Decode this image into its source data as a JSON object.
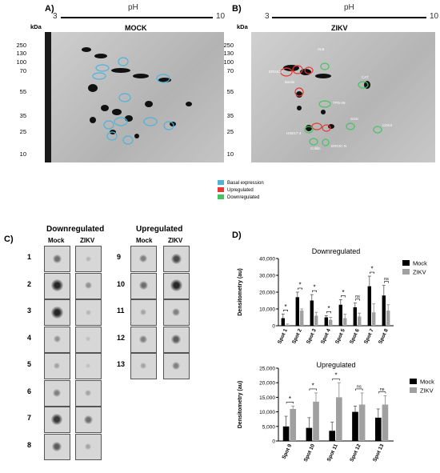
{
  "panelA": {
    "letter": "A)",
    "ph_label": "pH",
    "ph_low": "3",
    "ph_high": "10",
    "kda_label": "kDa",
    "title": "MOCK",
    "mw_ticks": [
      "250",
      "130",
      "100",
      "70",
      "55",
      "35",
      "25",
      "10"
    ]
  },
  "panelB": {
    "letter": "B)",
    "ph_label": "pH",
    "ph_low": "3",
    "ph_high": "10",
    "kda_label": "kDa",
    "title": "ZIKV",
    "mw_ticks": [
      "250",
      "130",
      "100",
      "70",
      "55",
      "35",
      "25",
      "10"
    ],
    "labels": [
      "ALB",
      "ERGIC3",
      "Basile",
      "CAT",
      "TPD-28",
      "SOD",
      "CDK3",
      "HSB17-4",
      "ERGIC-N",
      "Cofilin"
    ]
  },
  "legend": [
    {
      "label": "Basal expression",
      "color": "#4fb3d9"
    },
    {
      "label": "Upregulated",
      "color": "#e53935"
    },
    {
      "label": "Downregulated",
      "color": "#43c463"
    }
  ],
  "panelC": {
    "letter": "C)",
    "down_header": "Downregulated",
    "up_header": "Upregulated",
    "col_mock": "Mock",
    "col_zikv": "ZIKV",
    "down_rows": [
      "1",
      "2",
      "3",
      "4",
      "5",
      "6",
      "7",
      "8"
    ],
    "up_rows": [
      "9",
      "10",
      "11",
      "12",
      "13"
    ]
  },
  "panelD": {
    "letter": "D)"
  },
  "chart_data": [
    {
      "type": "bar",
      "title": "Downregulated",
      "ylabel": "Densitometry (au)",
      "categories": [
        "Spot 1",
        "Spot 2",
        "Spot 3",
        "Spot 4",
        "Spot 5",
        "Spot 6",
        "Spot 7",
        "Spot 8"
      ],
      "yticks": [
        "0",
        "10,000",
        "20,000",
        "30,000",
        "40,000"
      ],
      "ylim": [
        0,
        40000
      ],
      "series": [
        {
          "name": "Mock",
          "color": "#000000",
          "values": [
            4500,
            17000,
            15000,
            5000,
            12500,
            11000,
            23500,
            18000
          ],
          "errors": [
            2500,
            3000,
            3500,
            1000,
            3000,
            2500,
            6000,
            6000
          ]
        },
        {
          "name": "ZIKV",
          "color": "#a0a0a0",
          "values": [
            500,
            9000,
            6000,
            3500,
            4500,
            5500,
            8000,
            9000
          ],
          "errors": [
            500,
            1000,
            2000,
            1500,
            2500,
            2000,
            5000,
            3500
          ]
        }
      ],
      "significance": [
        "*",
        "*",
        "*",
        "*",
        "*",
        "ns",
        "*",
        "ns"
      ]
    },
    {
      "type": "bar",
      "title": "Upregulated",
      "ylabel": "Densitometry (au)",
      "categories": [
        "Spot 9",
        "Spot 10",
        "Spot 11",
        "Spot 12",
        "Spot 13"
      ],
      "yticks": [
        "0",
        "5,000",
        "10,000",
        "15,000",
        "20,000",
        "25,000"
      ],
      "ylim": [
        0,
        25000
      ],
      "series": [
        {
          "name": "Mock",
          "color": "#000000",
          "values": [
            5000,
            4500,
            3500,
            10000,
            8000
          ],
          "errors": [
            3500,
            3500,
            3000,
            2000,
            3000
          ]
        },
        {
          "name": "ZIKV",
          "color": "#a0a0a0",
          "values": [
            11000,
            13500,
            15000,
            12500,
            12500
          ],
          "errors": [
            1000,
            3000,
            5000,
            4000,
            3000
          ]
        }
      ],
      "significance": [
        "*",
        "*",
        "*",
        "ns",
        "ns"
      ]
    }
  ]
}
